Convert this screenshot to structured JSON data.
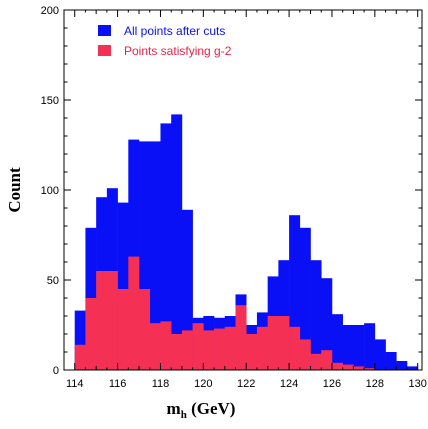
{
  "chart_data": {
    "type": "bar",
    "subtype": "overlaid-histogram",
    "title": "",
    "xlabel_main": "m",
    "xlabel_sub": "h",
    "xlabel_unit": " (GeV)",
    "ylabel": "Count",
    "xlim": [
      113.5,
      130.2
    ],
    "ylim": [
      0,
      200
    ],
    "bin_width": 0.5,
    "x_ticks": [
      114,
      116,
      118,
      120,
      122,
      124,
      126,
      128,
      130
    ],
    "y_ticks": [
      0,
      50,
      100,
      150,
      200
    ],
    "grid": false,
    "legend_position": "top-left",
    "bin_starts": [
      114.0,
      114.5,
      115.0,
      115.5,
      116.0,
      116.5,
      117.0,
      117.5,
      118.0,
      118.5,
      119.0,
      119.5,
      120.0,
      120.5,
      121.0,
      121.5,
      122.0,
      122.5,
      123.0,
      123.5,
      124.0,
      124.5,
      125.0,
      125.5,
      126.0,
      126.5,
      127.0,
      127.5,
      128.0,
      128.5,
      129.0,
      129.5
    ],
    "series": [
      {
        "name": "All points after cuts",
        "color": "#0a10f5",
        "values": [
          33,
          79,
          96,
          101,
          93,
          128,
          127,
          127,
          137,
          142,
          89,
          29,
          30,
          29,
          30,
          42,
          25,
          32,
          52,
          61,
          86,
          79,
          61,
          51,
          31,
          25,
          25,
          26,
          17,
          10,
          5,
          2
        ]
      },
      {
        "name": "Points satisfying g-2",
        "color": "#f53055",
        "values": [
          14,
          40,
          55,
          55,
          45,
          63,
          45,
          26,
          27,
          20,
          22,
          26,
          22,
          23,
          24,
          36,
          20,
          24,
          30,
          30,
          24,
          17,
          9,
          11,
          4,
          3,
          2,
          1,
          0,
          0,
          0,
          0
        ]
      }
    ]
  }
}
